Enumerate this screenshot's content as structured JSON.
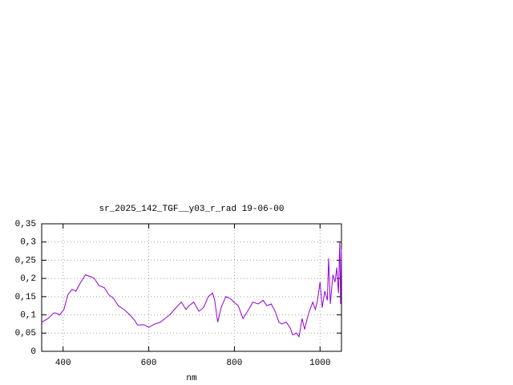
{
  "chart_data": {
    "type": "line",
    "title": "sr_2025_142_TGF__y03_r_rad 19-06-00",
    "x_label": "nm",
    "xlim": [
      350,
      1050
    ],
    "xticks": [
      400,
      600,
      800,
      1000
    ],
    "ylim": [
      0,
      0.35
    ],
    "yticks": [
      {
        "value": 0,
        "label": "0"
      },
      {
        "value": 0.05,
        "label": "0,05"
      },
      {
        "value": 0.1,
        "label": "0,1"
      },
      {
        "value": 0.15,
        "label": "0,15"
      },
      {
        "value": 0.2,
        "label": "0,2"
      },
      {
        "value": 0.25,
        "label": "0,25"
      },
      {
        "value": 0.3,
        "label": "0,3"
      },
      {
        "value": 0.35,
        "label": "0,35"
      }
    ],
    "grid": true,
    "x": [
      350,
      365,
      378,
      383,
      392,
      402,
      411,
      421,
      430,
      439,
      452,
      464,
      473,
      484,
      496,
      507,
      518,
      529,
      542,
      556,
      567,
      574,
      589,
      600,
      614,
      627,
      638,
      649,
      660,
      676,
      687,
      694,
      705,
      717,
      728,
      739,
      749,
      754,
      761,
      769,
      780,
      790,
      799,
      809,
      820,
      831,
      843,
      856,
      867,
      876,
      886,
      895,
      904,
      911,
      921,
      930,
      936,
      945,
      951,
      958,
      964,
      970,
      975,
      983,
      989,
      994,
      1000,
      1005,
      1011,
      1017,
      1020,
      1024,
      1030,
      1035,
      1039,
      1043,
      1046,
      1048,
      1050
    ],
    "series": [
      {
        "color": "#9400d3",
        "values": [
          0.08,
          0.09,
          0.105,
          0.105,
          0.1,
          0.115,
          0.155,
          0.17,
          0.165,
          0.185,
          0.21,
          0.205,
          0.2,
          0.18,
          0.175,
          0.155,
          0.145,
          0.125,
          0.115,
          0.1,
          0.085,
          0.072,
          0.073,
          0.066,
          0.075,
          0.08,
          0.09,
          0.1,
          0.115,
          0.135,
          0.115,
          0.125,
          0.135,
          0.11,
          0.12,
          0.15,
          0.16,
          0.14,
          0.08,
          0.12,
          0.15,
          0.145,
          0.135,
          0.125,
          0.09,
          0.11,
          0.135,
          0.13,
          0.14,
          0.125,
          0.13,
          0.11,
          0.08,
          0.075,
          0.08,
          0.065,
          0.045,
          0.05,
          0.04,
          0.09,
          0.06,
          0.09,
          0.11,
          0.135,
          0.115,
          0.14,
          0.19,
          0.12,
          0.165,
          0.14,
          0.255,
          0.13,
          0.21,
          0.19,
          0.23,
          0.16,
          0.3,
          0.13,
          0.28
        ]
      }
    ]
  }
}
